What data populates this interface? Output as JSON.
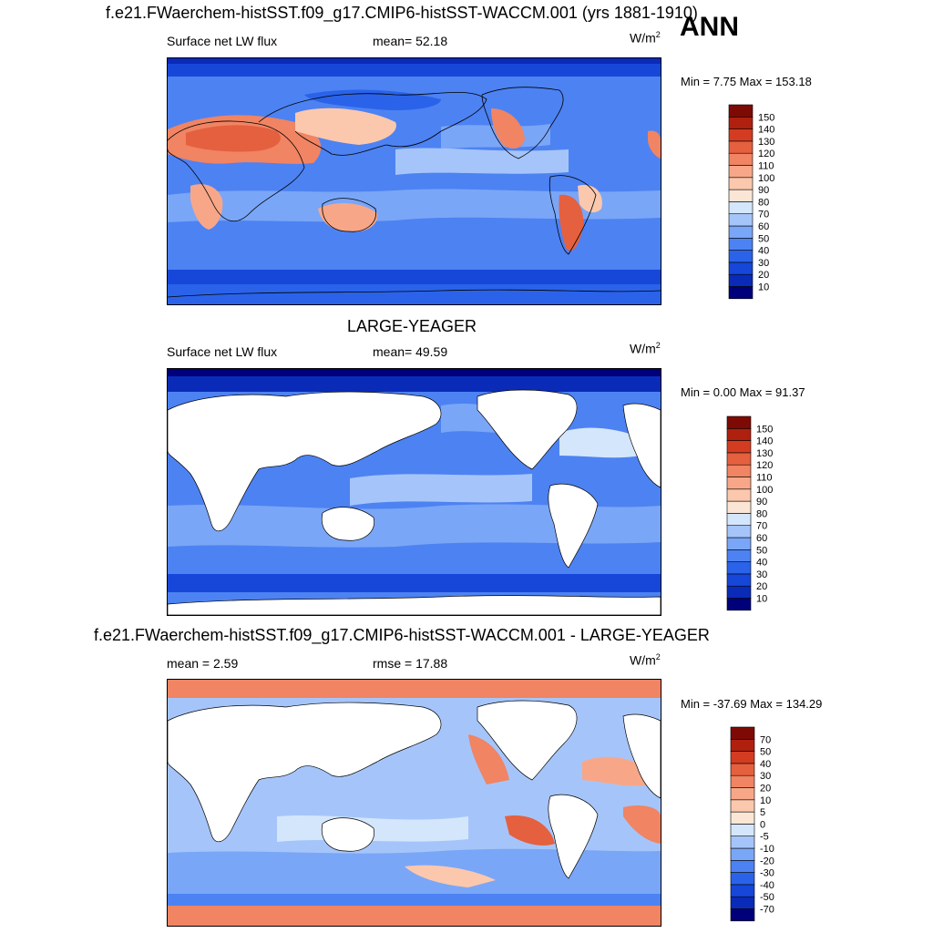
{
  "header": {
    "case_title": "f.e21.FWaerchem-histSST.f09_g17.CMIP6-histSST-WACCM.001 (yrs 1881-1910)",
    "season": "ANN"
  },
  "panels": [
    {
      "id": "model",
      "title": "",
      "left": "Surface net LW flux",
      "mid": "mean=  52.18",
      "units_base": "W/m",
      "units_exp": "2",
      "minmax": "Min =   7.75 Max = 153.18",
      "levels": [
        "10",
        "20",
        "30",
        "40",
        "50",
        "60",
        "70",
        "80",
        "90",
        "100",
        "110",
        "120",
        "130",
        "140",
        "150"
      ],
      "colors": [
        "#00007a",
        "#0a2bb8",
        "#1747d9",
        "#2a63ea",
        "#4d82f2",
        "#7aa6f7",
        "#a5c5fa",
        "#d4e6fb",
        "#fbe6d6",
        "#fbc8ad",
        "#f7a788",
        "#f08463",
        "#e5603f",
        "#d43c22",
        "#b0200f",
        "#7e0a06"
      ]
    },
    {
      "id": "obs",
      "title": "LARGE-YEAGER",
      "left": "Surface net LW flux",
      "mid": "mean=  49.59",
      "units_base": "W/m",
      "units_exp": "2",
      "minmax": "Min =   0.00 Max =  91.37",
      "levels": [
        "10",
        "20",
        "30",
        "40",
        "50",
        "60",
        "70",
        "80",
        "90",
        "100",
        "110",
        "120",
        "130",
        "140",
        "150"
      ],
      "colors": [
        "#00007a",
        "#0a2bb8",
        "#1747d9",
        "#2a63ea",
        "#4d82f2",
        "#7aa6f7",
        "#a5c5fa",
        "#d4e6fb",
        "#fbe6d6",
        "#fbc8ad",
        "#f7a788",
        "#f08463",
        "#e5603f",
        "#d43c22",
        "#b0200f",
        "#7e0a06"
      ]
    },
    {
      "id": "diff",
      "title": "f.e21.FWaerchem-histSST.f09_g17.CMIP6-histSST-WACCM.001 - LARGE-YEAGER",
      "left": "mean =   2.59",
      "mid": "rmse =  17.88",
      "units_base": "W/m",
      "units_exp": "2",
      "minmax": "Min = -37.69 Max = 134.29",
      "levels": [
        "-70",
        "-50",
        "-40",
        "-30",
        "-20",
        "-10",
        "-5",
        "0",
        "5",
        "10",
        "20",
        "30",
        "40",
        "50",
        "70"
      ],
      "colors": [
        "#00007a",
        "#0a2bb8",
        "#1747d9",
        "#2a63ea",
        "#4d82f2",
        "#7aa6f7",
        "#a5c5fa",
        "#d4e6fb",
        "#fbe6d6",
        "#fbc8ad",
        "#f7a788",
        "#f08463",
        "#e5603f",
        "#d43c22",
        "#b0200f",
        "#7e0a06"
      ]
    }
  ],
  "chart_data": [
    {
      "type": "heatmap",
      "title": "f.e21.FWaerchem-histSST.f09_g17.CMIP6-histSST-WACCM.001 (yrs 1881-1910)",
      "variable": "Surface net LW flux",
      "units": "W/m2",
      "mean": 52.18,
      "min": 7.75,
      "max": 153.18,
      "contour_levels": [
        10,
        20,
        30,
        40,
        50,
        60,
        70,
        80,
        90,
        100,
        110,
        120,
        130,
        140,
        150
      ]
    },
    {
      "type": "heatmap",
      "title": "LARGE-YEAGER",
      "variable": "Surface net LW flux",
      "units": "W/m2",
      "mean": 49.59,
      "min": 0.0,
      "max": 91.37,
      "contour_levels": [
        10,
        20,
        30,
        40,
        50,
        60,
        70,
        80,
        90,
        100,
        110,
        120,
        130,
        140,
        150
      ]
    },
    {
      "type": "heatmap",
      "title": "f.e21.FWaerchem-histSST.f09_g17.CMIP6-histSST-WACCM.001 - LARGE-YEAGER",
      "units": "W/m2",
      "mean": 2.59,
      "rmse": 17.88,
      "min": -37.69,
      "max": 134.29,
      "contour_levels": [
        -70,
        -50,
        -40,
        -30,
        -20,
        -10,
        -5,
        0,
        5,
        10,
        20,
        30,
        40,
        50,
        70
      ]
    }
  ]
}
